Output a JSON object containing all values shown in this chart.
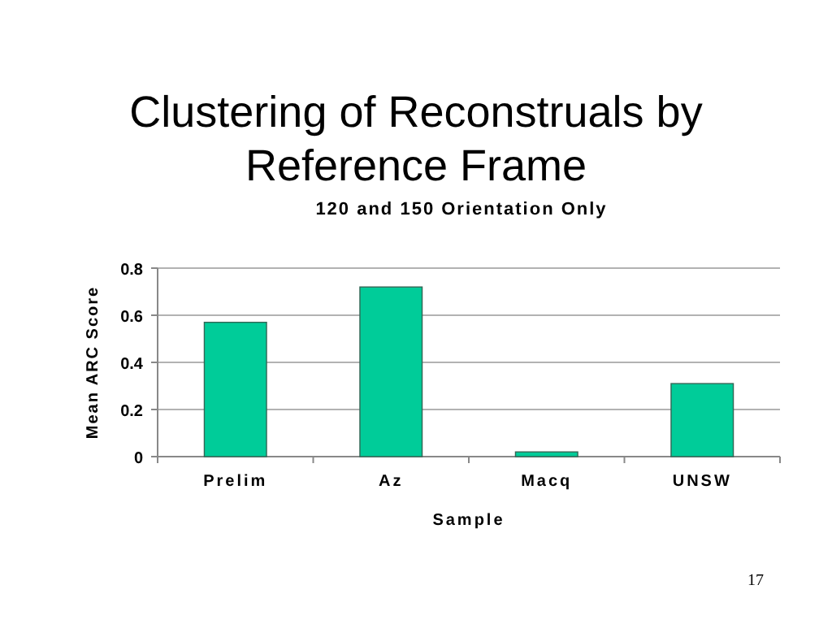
{
  "chart_data": {
    "type": "bar",
    "title": "Clustering of Reconstruals by Reference Frame",
    "subtitle": "120 and 150 Orientation Only",
    "xlabel": "Sample",
    "ylabel": "Mean ARC Score",
    "categories": [
      "Prelim",
      "Az",
      "Macq",
      "UNSW"
    ],
    "values": [
      0.57,
      0.72,
      0.02,
      0.31
    ],
    "color": "#00cc99",
    "ylim": [
      0,
      0.8
    ],
    "yticks": [
      0,
      0.2,
      0.4,
      0.6,
      0.8
    ],
    "grid": "y",
    "annotations": [
      "17"
    ]
  }
}
